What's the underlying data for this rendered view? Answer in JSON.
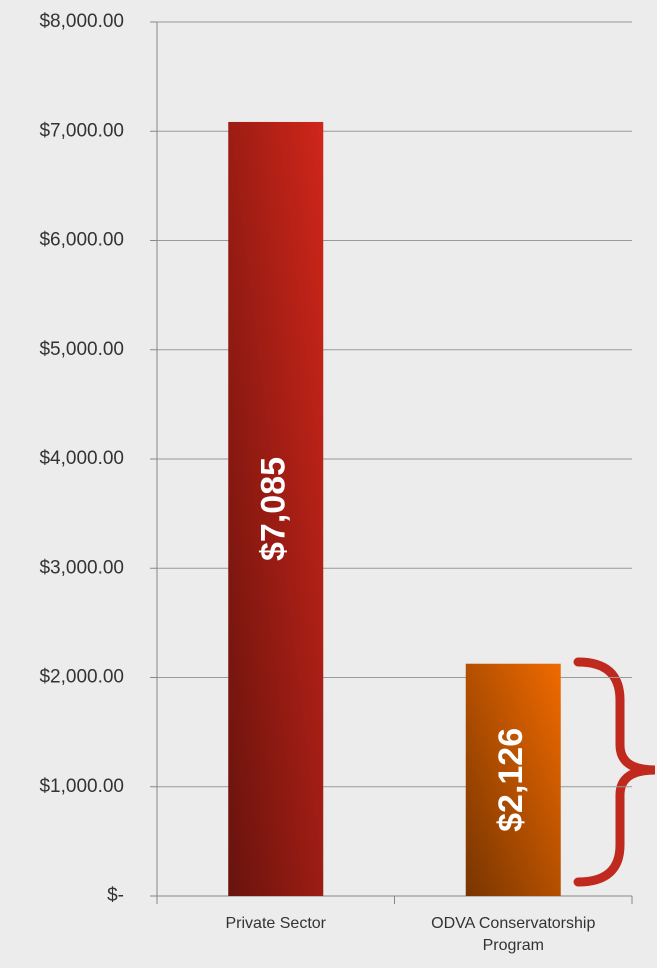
{
  "chart_data": {
    "type": "bar",
    "categories": [
      "Private Sector",
      "ODVA Conservatorship Program"
    ],
    "values": [
      7085,
      2126
    ],
    "value_labels": [
      "$7,085",
      "$2,126"
    ],
    "colors": [
      "#d0261a",
      "#f06a00"
    ],
    "ylim": [
      0,
      8000
    ],
    "yticks": [
      {
        "value": 0,
        "label": "$-"
      },
      {
        "value": 1000,
        "label": "$1,000.00"
      },
      {
        "value": 2000,
        "label": "$2,000.00"
      },
      {
        "value": 3000,
        "label": "$3,000.00"
      },
      {
        "value": 4000,
        "label": "$4,000.00"
      },
      {
        "value": 5000,
        "label": "$5,000.00"
      },
      {
        "value": 6000,
        "label": "$6,000.00"
      },
      {
        "value": 7000,
        "label": "$7,000.00"
      },
      {
        "value": 8000,
        "label": "$8,000.00"
      }
    ],
    "grid": true
  }
}
